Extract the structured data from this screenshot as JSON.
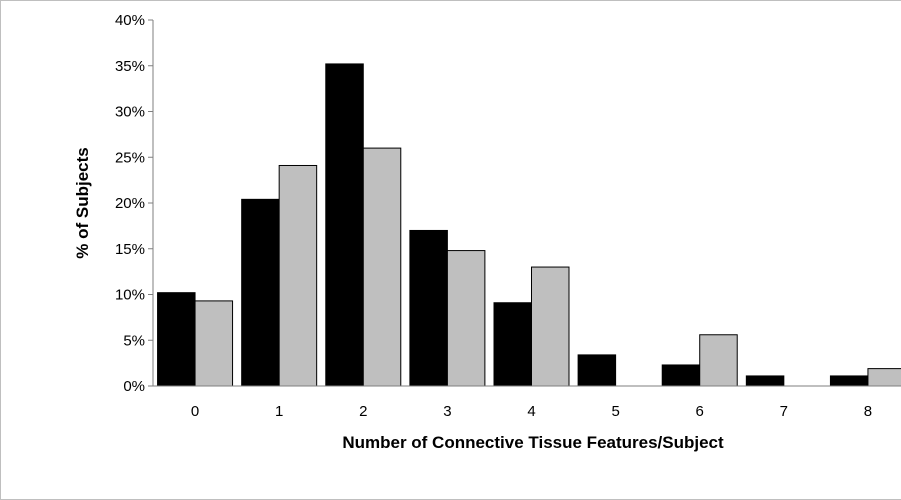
{
  "chart_data": {
    "type": "bar",
    "title": "",
    "xlabel": "Number of Connective Tissue Features/Subject",
    "ylabel": "% of Subjects",
    "categories": [
      "0",
      "1",
      "2",
      "3",
      "4",
      "5",
      "6",
      "7",
      "8"
    ],
    "series": [
      {
        "color": "#000000",
        "values": [
          10.2,
          20.4,
          35.2,
          17.0,
          9.1,
          3.4,
          2.3,
          1.1,
          1.1
        ]
      },
      {
        "color": "#bfbfbf",
        "values": [
          9.3,
          24.1,
          26.0,
          14.8,
          13.0,
          0,
          5.6,
          0,
          1.9
        ]
      }
    ],
    "ylim": [
      0,
      40
    ],
    "yticks": [
      "0%",
      "5%",
      "10%",
      "15%",
      "20%",
      "25%",
      "30%",
      "35%",
      "40%"
    ],
    "grid": false,
    "legend": "none"
  }
}
